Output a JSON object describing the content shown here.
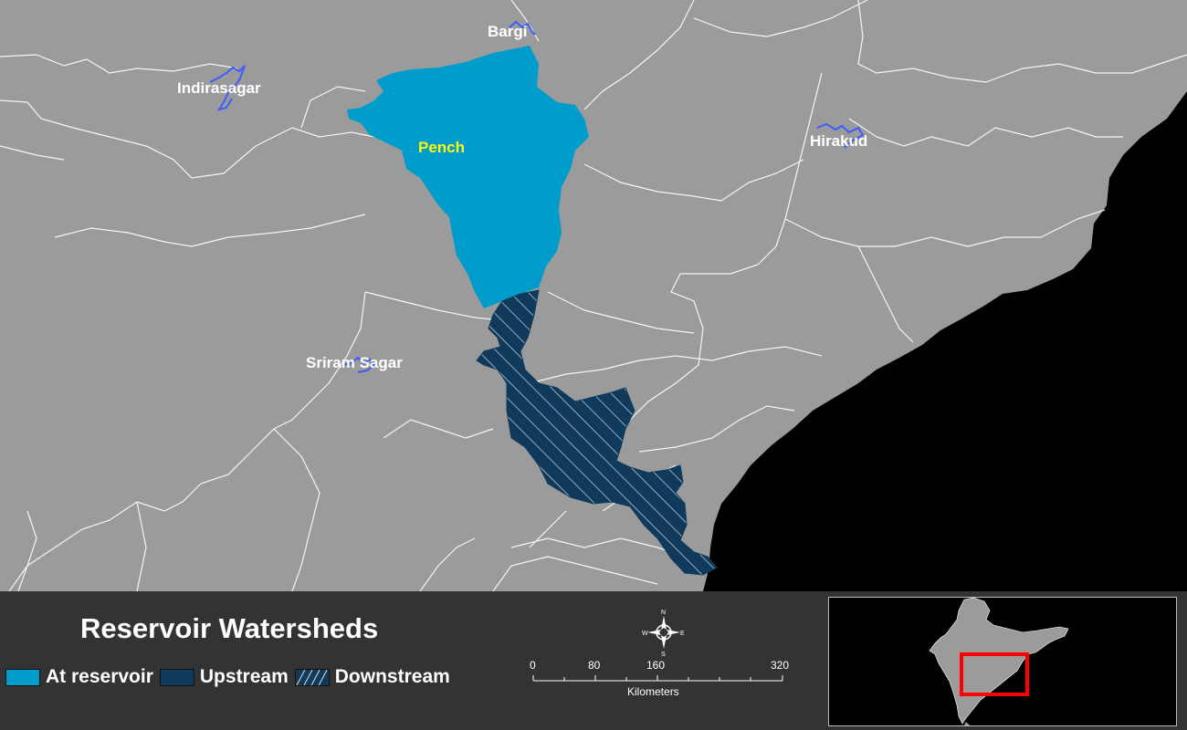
{
  "map": {
    "reservoirs": [
      {
        "name": "Bargi",
        "type": "other"
      },
      {
        "name": "Indirasagar",
        "type": "other"
      },
      {
        "name": "Pench",
        "type": "focus"
      },
      {
        "name": "Hirakud",
        "type": "other"
      },
      {
        "name": "Sriram Sagar",
        "type": "other"
      }
    ],
    "colors": {
      "land": "#9b9b9b",
      "sea": "#000000",
      "boundary": "#ffffff",
      "at_reservoir": "#009ccc",
      "upstream": "#0f3a5c",
      "reservoir_outline": "#3d5cff",
      "focus_label": "#ffff00",
      "label": "#ffffff"
    }
  },
  "legend": {
    "title": "Reservoir Watersheds",
    "items": [
      {
        "label": "At reservoir",
        "kind": "at_reservoir"
      },
      {
        "label": "Upstream",
        "kind": "upstream"
      },
      {
        "label": "Downstream",
        "kind": "downstream"
      }
    ]
  },
  "scalebar": {
    "ticks": [
      "0",
      "80",
      "160",
      "320"
    ],
    "unit": "Kilometers"
  },
  "north_arrow": {
    "n": "N",
    "s": "S",
    "e": "E",
    "w": "W"
  },
  "inset": {
    "highlight_color": "#ff0000"
  }
}
